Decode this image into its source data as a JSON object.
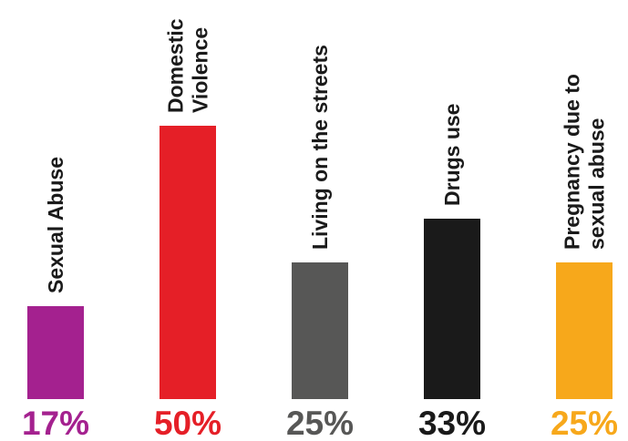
{
  "chart_data": {
    "type": "bar",
    "title": "",
    "xlabel": "",
    "ylabel": "",
    "ylim": [
      0,
      50
    ],
    "grid": false,
    "legend": "none",
    "categories": [
      [
        "Sexual Abuse"
      ],
      [
        "Domestic",
        "Violence"
      ],
      [
        "Living on the streets"
      ],
      [
        "Drugs use"
      ],
      [
        "Pregnancy due to",
        "sexual abuse"
      ]
    ],
    "values": [
      17,
      50,
      25,
      33,
      25
    ],
    "value_labels": [
      "17%",
      "50%",
      "25%",
      "33%",
      "25%"
    ],
    "colors": [
      "#a4218f",
      "#e51f27",
      "#575756",
      "#1a1a1a",
      "#f7a81b"
    ]
  }
}
